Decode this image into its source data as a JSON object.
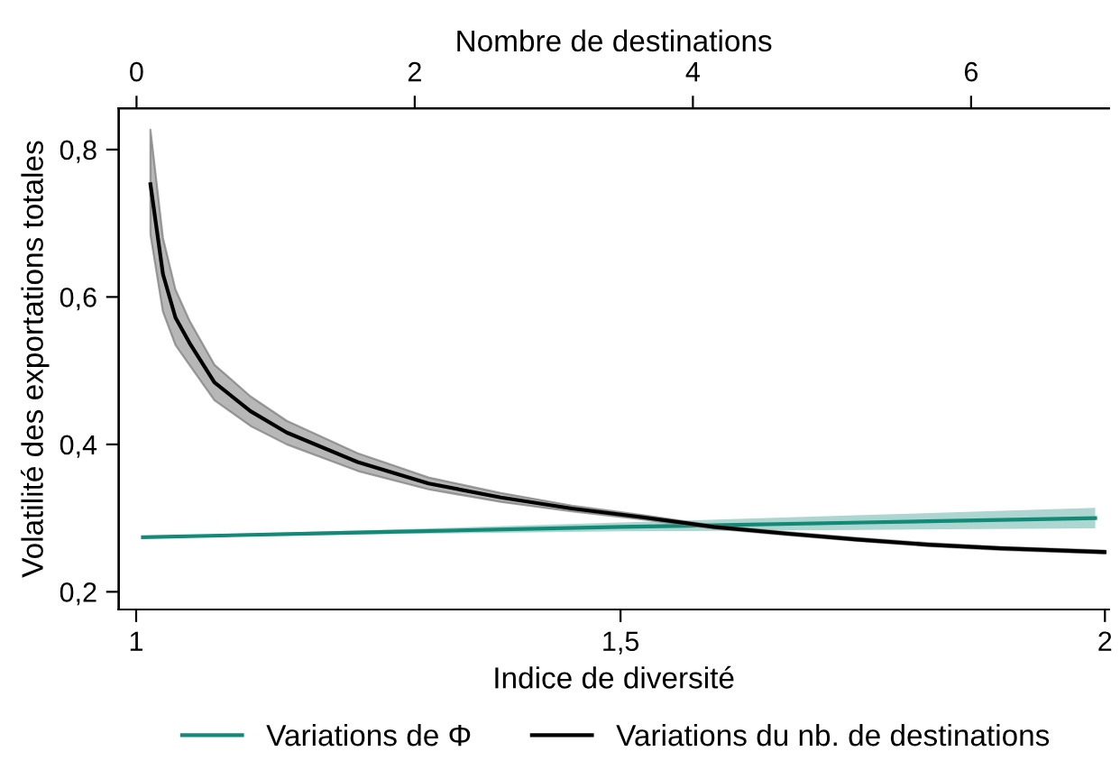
{
  "chart_data": {
    "type": "line",
    "xlabel": "Indice de diversité",
    "ylabel": "Volatilité des exportations totales",
    "x2label": "Nombre de destinations",
    "xlim": [
      0.982,
      2.004
    ],
    "xticks": [
      1,
      {
        "value": 1.5,
        "label": "1,5"
      },
      2
    ],
    "x2lim": [
      -0.128,
      6.99
    ],
    "x2ticks": [
      0,
      2,
      4,
      6
    ],
    "ylim": [
      0.176,
      0.856
    ],
    "yticks": [
      {
        "value": 0.2,
        "label": "0,2"
      },
      {
        "value": 0.4,
        "label": "0,4"
      },
      {
        "value": 0.6,
        "label": "0,6"
      },
      {
        "value": 0.8,
        "label": "0,8"
      }
    ],
    "grid": false,
    "legend": "bottom",
    "line_style": "solid",
    "marker": "none",
    "series": [
      {
        "name": "Variations de Φ",
        "color": "#138a78",
        "x": [
          1.007,
          1.25,
          1.5,
          1.75,
          1.99
        ],
        "values": [
          0.274,
          0.281,
          0.288,
          0.294,
          0.3
        ],
        "lower": [
          0.273,
          0.278,
          0.282,
          0.284,
          0.286
        ],
        "upper": [
          0.275,
          0.284,
          0.294,
          0.304,
          0.314
        ]
      },
      {
        "name": "Variations du nb. de destinations",
        "color": "#000000",
        "axis": "x2",
        "x": [
          0.1,
          0.19,
          0.28,
          0.38,
          0.56,
          0.82,
          1.08,
          1.59,
          2.1,
          2.62,
          3.13,
          3.64,
          4.15,
          4.67,
          5.18,
          5.69,
          6.21,
          6.96
        ],
        "values": [
          0.753,
          0.631,
          0.572,
          0.538,
          0.484,
          0.445,
          0.416,
          0.376,
          0.347,
          0.328,
          0.313,
          0.301,
          0.288,
          0.279,
          0.271,
          0.264,
          0.259,
          0.254
        ],
        "lower": [
          0.685,
          0.58,
          0.535,
          0.508,
          0.46,
          0.425,
          0.4,
          0.364,
          0.339,
          0.322,
          0.309,
          0.298,
          0.286,
          0.277,
          0.269,
          0.262,
          0.257,
          0.252
        ],
        "upper": [
          0.827,
          0.68,
          0.61,
          0.568,
          0.508,
          0.465,
          0.432,
          0.388,
          0.355,
          0.334,
          0.317,
          0.304,
          0.29,
          0.281,
          0.273,
          0.266,
          0.261,
          0.256
        ]
      }
    ]
  }
}
